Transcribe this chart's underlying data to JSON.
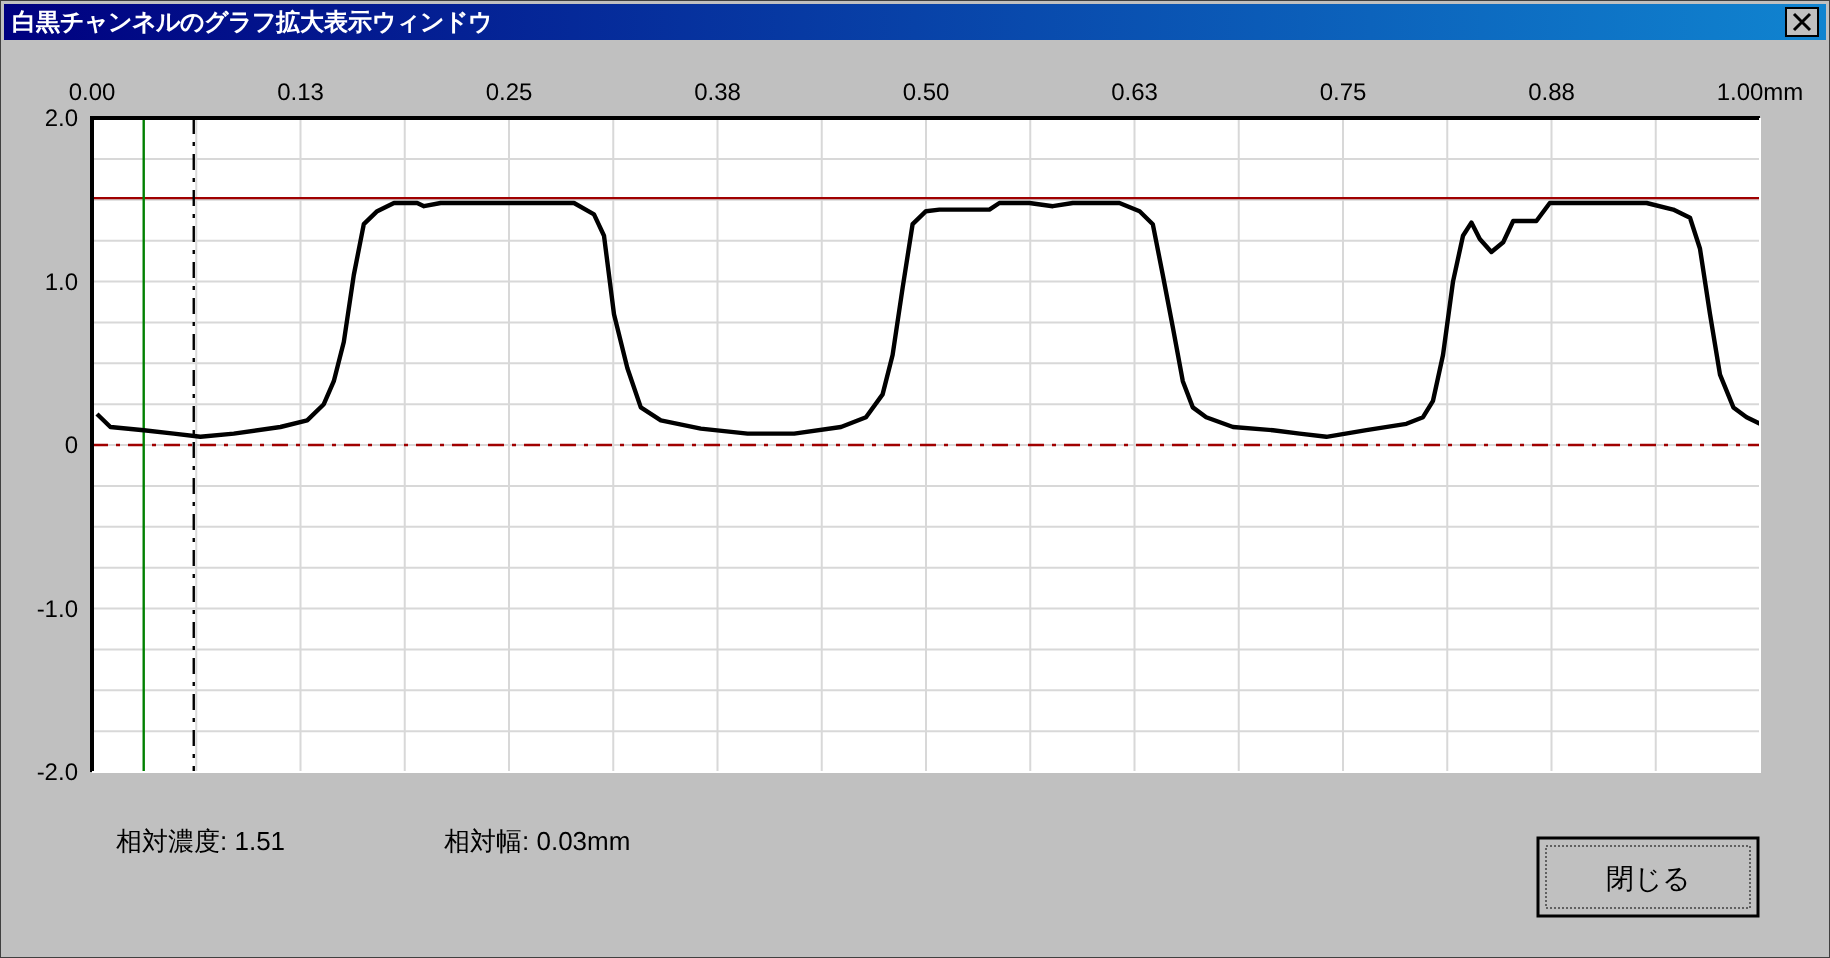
{
  "chart_data": {
    "type": "line",
    "title": "白黒チャンネルのグラフ拡大表示ウィンドウ",
    "x": [
      0.003,
      0.011,
      0.031,
      0.049,
      0.065,
      0.085,
      0.113,
      0.129,
      0.139,
      0.145,
      0.151,
      0.157,
      0.163,
      0.171,
      0.181,
      0.195,
      0.199,
      0.209,
      0.249,
      0.289,
      0.301,
      0.307,
      0.313,
      0.321,
      0.329,
      0.341,
      0.365,
      0.393,
      0.421,
      0.449,
      0.464,
      0.474,
      0.48,
      0.486,
      0.492,
      0.5,
      0.508,
      0.538,
      0.544,
      0.562,
      0.576,
      0.588,
      0.616,
      0.628,
      0.636,
      0.642,
      0.648,
      0.654,
      0.66,
      0.668,
      0.684,
      0.708,
      0.724,
      0.74,
      0.764,
      0.788,
      0.798,
      0.804,
      0.81,
      0.816,
      0.822,
      0.827,
      0.832,
      0.839,
      0.846,
      0.852,
      0.866,
      0.874,
      0.932,
      0.948,
      0.958,
      0.964,
      0.97,
      0.976,
      0.984,
      0.992,
      1.0
    ],
    "series": [
      {
        "color": "#000000",
        "values": [
          0.19,
          0.11,
          0.09,
          0.07,
          0.05,
          0.07,
          0.11,
          0.15,
          0.25,
          0.39,
          0.63,
          1.04,
          1.35,
          1.43,
          1.48,
          1.48,
          1.46,
          1.48,
          1.48,
          1.48,
          1.41,
          1.28,
          0.8,
          0.47,
          0.23,
          0.15,
          0.1,
          0.07,
          0.07,
          0.11,
          0.17,
          0.31,
          0.55,
          0.96,
          1.35,
          1.43,
          1.44,
          1.44,
          1.48,
          1.48,
          1.46,
          1.48,
          1.48,
          1.43,
          1.35,
          1.04,
          0.72,
          0.39,
          0.23,
          0.17,
          0.11,
          0.09,
          0.07,
          0.05,
          0.09,
          0.13,
          0.17,
          0.27,
          0.55,
          1.0,
          1.28,
          1.36,
          1.26,
          1.18,
          1.24,
          1.37,
          1.37,
          1.48,
          1.48,
          1.44,
          1.39,
          1.2,
          0.8,
          0.43,
          0.23,
          0.17,
          0.13
        ]
      }
    ],
    "xlim": [
      0,
      1
    ],
    "xticks": [
      {
        "value": 0,
        "label": "0.00"
      },
      {
        "value": 0.0625,
        "label": null
      },
      {
        "value": 0.125,
        "label": "0.13"
      },
      {
        "value": 0.1875,
        "label": null
      },
      {
        "value": 0.25,
        "label": "0.25"
      },
      {
        "value": 0.3125,
        "label": null
      },
      {
        "value": 0.375,
        "label": "0.38"
      },
      {
        "value": 0.4375,
        "label": null
      },
      {
        "value": 0.5,
        "label": "0.50"
      },
      {
        "value": 0.5625,
        "label": null
      },
      {
        "value": 0.625,
        "label": "0.63"
      },
      {
        "value": 0.6875,
        "label": null
      },
      {
        "value": 0.75,
        "label": "0.75"
      },
      {
        "value": 0.8125,
        "label": null
      },
      {
        "value": 0.875,
        "label": "0.88"
      },
      {
        "value": 0.9375,
        "label": null
      },
      {
        "value": 1,
        "label": "1.00mm"
      }
    ],
    "ylim": [
      -2,
      2
    ],
    "yticks": [
      {
        "value": -2,
        "label": "-2.0"
      },
      {
        "value": -1.75,
        "label": null
      },
      {
        "value": -1.5,
        "label": null
      },
      {
        "value": -1.25,
        "label": null
      },
      {
        "value": -1,
        "label": "-1.0"
      },
      {
        "value": -0.75,
        "label": null
      },
      {
        "value": -0.5,
        "label": null
      },
      {
        "value": -0.25,
        "label": null
      },
      0,
      {
        "value": 0.25,
        "label": null
      },
      {
        "value": 0.5,
        "label": null
      },
      {
        "value": 0.75,
        "label": null
      },
      {
        "value": 1,
        "label": "1.0"
      },
      {
        "value": 1.25,
        "label": null
      },
      {
        "value": 1.5,
        "label": null
      },
      {
        "value": 1.75,
        "label": null
      },
      {
        "value": 2,
        "label": "2.0"
      }
    ],
    "grid": true,
    "ref_lines": [
      {
        "axis": "y",
        "value": 1.51,
        "color": "#a00000",
        "line_style": "solid"
      },
      {
        "axis": "y",
        "value": 0,
        "color": "#a00000",
        "line_style": "dashdot"
      },
      {
        "axis": "x",
        "value": 0.031,
        "color": "#008000",
        "line_style": "solid"
      },
      {
        "axis": "x",
        "value": 0.061,
        "color": "#000000",
        "line_style": "dashdot"
      }
    ],
    "annotations": [
      "相対濃度: 1.51",
      "相対幅: 0.03mm",
      "閉じる"
    ]
  }
}
